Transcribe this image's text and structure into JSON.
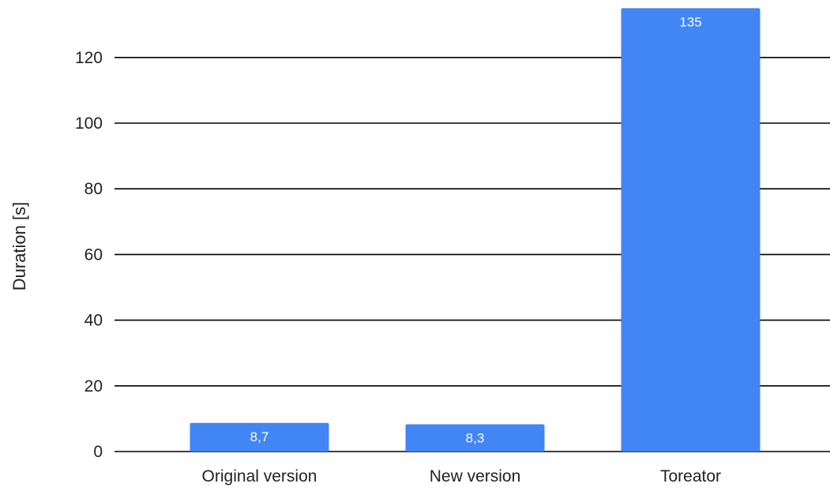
{
  "chart_data": {
    "type": "bar",
    "title": "",
    "xlabel": "",
    "ylabel": "Duration [s]",
    "categories": [
      "Original version",
      "New version",
      "Toreator"
    ],
    "values": [
      8.7,
      8.3,
      135
    ],
    "value_labels": [
      "8,7",
      "8,3",
      "135"
    ],
    "ylim": [
      0,
      135
    ],
    "yticks": [
      0,
      20,
      40,
      60,
      80,
      100,
      120
    ],
    "grid": true,
    "legend": "none",
    "colors": {
      "bar": "#4285f4",
      "grid": "#000000",
      "text": "#222222",
      "value_label": "#ffffff"
    }
  }
}
